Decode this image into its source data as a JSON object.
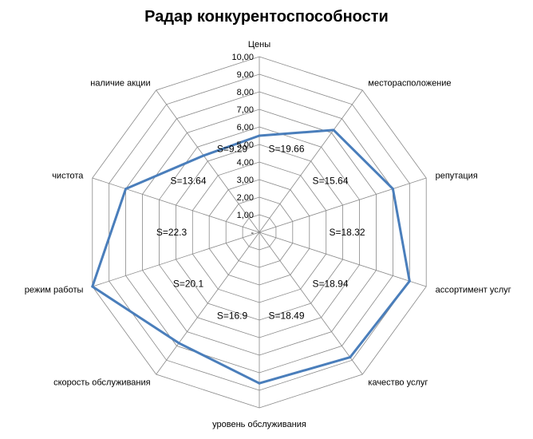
{
  "chart_data": {
    "type": "radar",
    "title": "Радар конкурентоспособности",
    "axes": [
      "Цены",
      "месторасположение",
      "репутация",
      "ассортимент услуг",
      "качество услуг",
      "уровень обслуживания",
      "скорость обслуживания",
      "режим работы",
      "чистота",
      "наличие акции"
    ],
    "range": [
      0,
      10
    ],
    "ticks": [
      "-",
      "1,00",
      "2,00",
      "3,00",
      "4,00",
      "5,00",
      "6,00",
      "7,00",
      "8,00",
      "9,00",
      "10,00"
    ],
    "grid": true,
    "legend": "none",
    "series": [
      {
        "values": [
          5.5,
          7.2,
          8.0,
          9.0,
          8.8,
          8.6,
          7.8,
          10.0,
          8.0,
          5.4
        ],
        "color": "#4a7ebb"
      }
    ],
    "area_labels": [
      "S=19.66",
      "S=15.64",
      "S=18.32",
      "S=18.94",
      "S=18.49",
      "S=16.9",
      "S=20.1",
      "S=22.3",
      "S=13.64",
      "S=9.29"
    ]
  }
}
